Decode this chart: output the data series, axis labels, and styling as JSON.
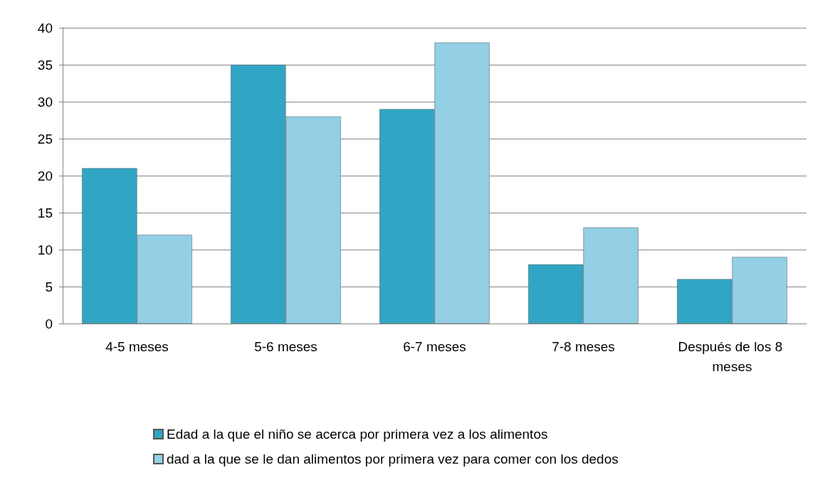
{
  "chart_data": {
    "type": "bar",
    "categories": [
      "4-5 meses",
      "5-6 meses",
      "6-7 meses",
      "7-8 meses",
      "Después de los 8 meses"
    ],
    "series": [
      {
        "name": "Edad a la que el niño se acerca por primera vez a los alimentos",
        "color": "#31a5c4",
        "values": [
          21,
          35,
          29,
          8,
          6
        ]
      },
      {
        "name": "dad a la que se le dan alimentos por primera vez para comer con los dedos",
        "color": "#93cfe5",
        "values": [
          12,
          28,
          38,
          13,
          9
        ]
      }
    ],
    "ylim": [
      0,
      40
    ],
    "yticks": [
      0,
      5,
      10,
      15,
      20,
      25,
      30,
      35,
      40
    ],
    "grid": "y",
    "legend": "bottom"
  }
}
